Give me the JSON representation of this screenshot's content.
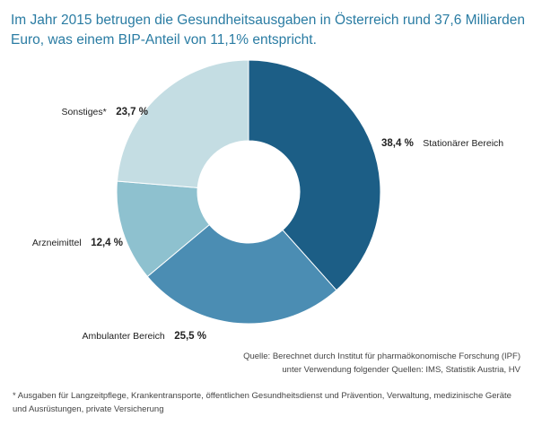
{
  "title_line1": "Im Jahr 2015 betrugen die Gesundheitsausgaben in Österreich rund 37,6 Milliarden",
  "title_line2": "Euro, was einem BIP-Anteil von 11,1% entspricht.",
  "chart_data": {
    "type": "pie",
    "style": "donut",
    "title": "Im Jahr 2015 betrugen die Gesundheitsausgaben in Österreich rund 37,6 Milliarden Euro, was einem BIP-Anteil von 11,1% entspricht.",
    "slices": [
      {
        "name": "Stationärer Bereich",
        "value": 38.4,
        "label": "38,4 %",
        "color": "#1c5e86"
      },
      {
        "name": "Ambulanter Bereich",
        "value": 25.5,
        "label": "25,5 %",
        "color": "#4b8db3"
      },
      {
        "name": "Arzneimittel",
        "value": 12.4,
        "label": "12,4 %",
        "color": "#8ec1cf"
      },
      {
        "name": "Sonstiges*",
        "value": 23.7,
        "label": "23,7 %",
        "color": "#c4dde3"
      }
    ]
  },
  "source_line1": "Quelle: Berechnet durch Institut für pharmaökonomische Forschung (IPF)",
  "source_line2": "unter Verwendung folgender Quellen: IMS, Statistik Austria, HV",
  "footnote_line1": "* Ausgaben für Langzeitpflege, Krankentransporte, öffentlichen Gesundheitsdienst und Prävention, Verwaltung, medizinische Geräte",
  "footnote_line2": "und Ausrüstungen, private Versicherung"
}
